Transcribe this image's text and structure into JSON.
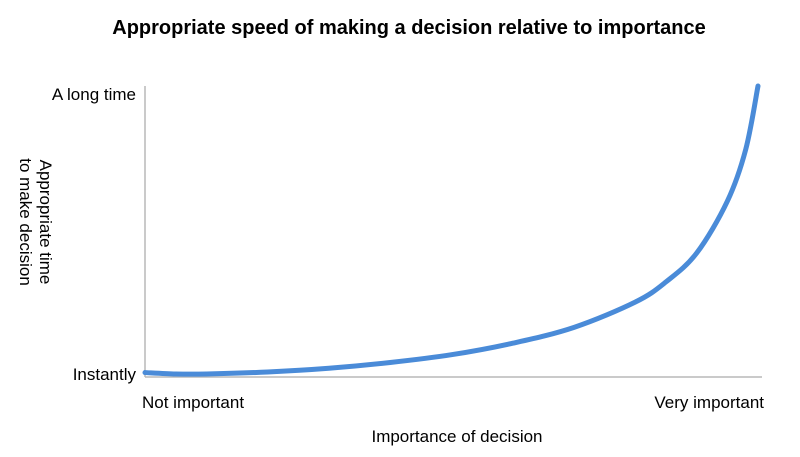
{
  "chart_data": {
    "type": "line",
    "title": "Appropriate speed of making a decision relative to importance",
    "xlabel": "Importance of decision",
    "ylabel": [
      "Appropriate time",
      "to make decision"
    ],
    "x_ticks": [
      "Not important",
      "Very important"
    ],
    "y_ticks": [
      "Instantly",
      "A long time"
    ],
    "xlim": [
      0,
      1
    ],
    "ylim": [
      0,
      1
    ],
    "grid": false,
    "series": [
      {
        "name": "Appropriate time",
        "color": "#4a8bd8",
        "x": [
          0,
          0.05,
          0.1,
          0.2,
          0.3,
          0.4,
          0.5,
          0.6,
          0.7,
          0.8,
          0.85,
          0.9,
          0.95,
          0.98,
          1.0
        ],
        "y": [
          0.005,
          0.0,
          0.0,
          0.007,
          0.02,
          0.04,
          0.067,
          0.107,
          0.162,
          0.25,
          0.32,
          0.42,
          0.6,
          0.78,
          1.0
        ]
      }
    ]
  }
}
